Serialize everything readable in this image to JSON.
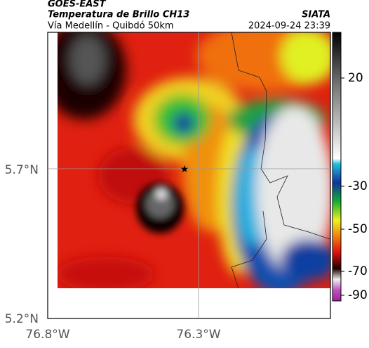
{
  "header": {
    "source": "GOES-EAST",
    "title": "Temperatura de Brillo CH13",
    "subtitle": "Vía Medellín - Quibdó 50km",
    "brand": "SIATA",
    "timestamp": "2024-09-24 23:39"
  },
  "axes": {
    "lat_labels": [
      "5.7°N",
      "5.2°N"
    ],
    "lon_labels": [
      "76.8°W",
      "76.3°W"
    ]
  },
  "colorbar": {
    "labels": [
      "20",
      "-30",
      "-50",
      "-70",
      "-90"
    ]
  }
}
